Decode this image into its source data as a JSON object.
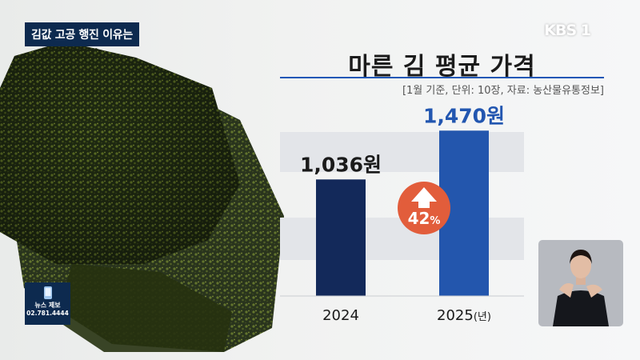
{
  "caption": "김값 고공 행진 이유는",
  "logo": "KBS 1",
  "news_tip": {
    "title": "뉴스 제보",
    "phone": "02.781.4444"
  },
  "colors": {
    "bar_2024": "#13295a",
    "bar_2025": "#2356ad",
    "badge": "#e25d3b",
    "title_rule": "#1f57b6"
  },
  "chart_data": {
    "type": "bar",
    "title": "마른 김 평균 가격",
    "subtitle": "[1월 기준, 단위: 10장, 자료: 농산물유통정보]",
    "categories": [
      "2024",
      "2025"
    ],
    "category_suffix": [
      "",
      "(년)"
    ],
    "values": [
      1036,
      1470
    ],
    "value_labels": [
      "1,036원",
      "1,470원"
    ],
    "change_label": "42",
    "change_unit": "%",
    "ylim": [
      0,
      1600
    ]
  }
}
